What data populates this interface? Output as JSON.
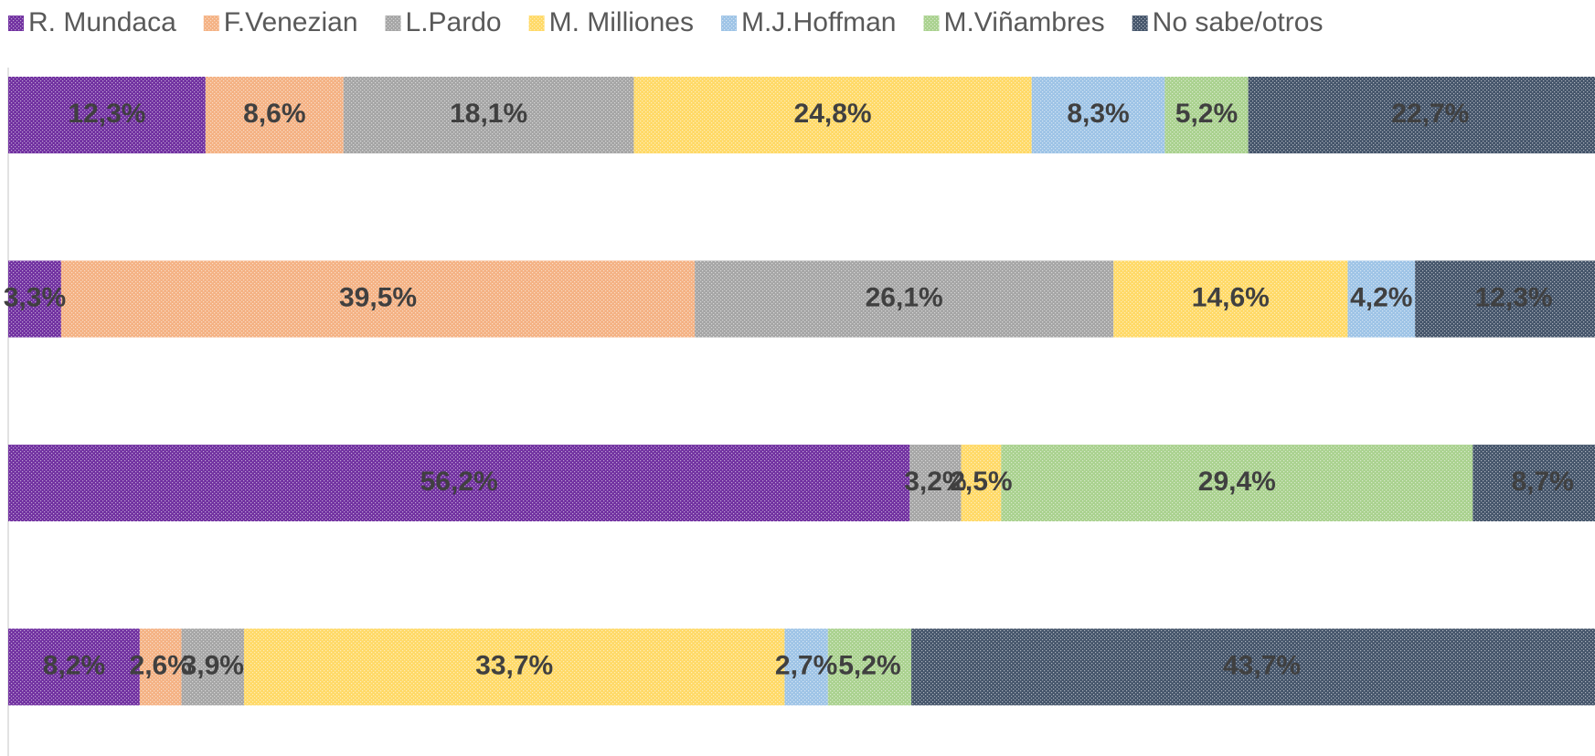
{
  "chart_data": {
    "type": "stacked_bar_horizontal",
    "categories": [
      null,
      null,
      null,
      null
    ],
    "xlim": [
      0,
      100
    ],
    "legend": "top",
    "series": [
      {
        "name": "R. Mundaca",
        "color": "#7030a0",
        "values": [
          12.3,
          3.3,
          56.2,
          8.2
        ],
        "value_labels": [
          "12,3%",
          "3,3%",
          "56,2%",
          "8,2%"
        ]
      },
      {
        "name": "F.Venezian",
        "color": "#f4b183",
        "values": [
          8.6,
          39.5,
          null,
          2.6
        ],
        "value_labels": [
          "8,6%",
          "39,5%",
          null,
          "2,6%"
        ]
      },
      {
        "name": "L.Pardo",
        "color": "#a5a5a5",
        "values": [
          18.1,
          26.1,
          3.2,
          3.9
        ],
        "value_labels": [
          "18,1%",
          "26,1%",
          "3,2%",
          "3,9%"
        ]
      },
      {
        "name": "M. Milliones",
        "color": "#ffd966",
        "values": [
          24.8,
          14.6,
          2.5,
          33.7
        ],
        "value_labels": [
          "24,8%",
          "14,6%",
          "2,5%",
          "33,7%"
        ]
      },
      {
        "name": "M.J.Hoffman",
        "color": "#9dc3e6",
        "values": [
          8.3,
          4.2,
          null,
          2.7
        ],
        "value_labels": [
          "8,3%",
          "4,2%",
          null,
          "2,7%"
        ]
      },
      {
        "name": "M.Viñambres",
        "color": "#a9d18e",
        "values": [
          5.2,
          null,
          29.4,
          5.2
        ],
        "value_labels": [
          "5,2%",
          null,
          "29,4%",
          "5,2%"
        ]
      },
      {
        "name": "No sabe/otros",
        "color": "#44546a",
        "values": [
          22.7,
          12.3,
          8.7,
          43.7
        ],
        "value_labels": [
          "22,7%",
          "12,3%",
          "8,7%",
          "43,7%"
        ]
      }
    ]
  }
}
